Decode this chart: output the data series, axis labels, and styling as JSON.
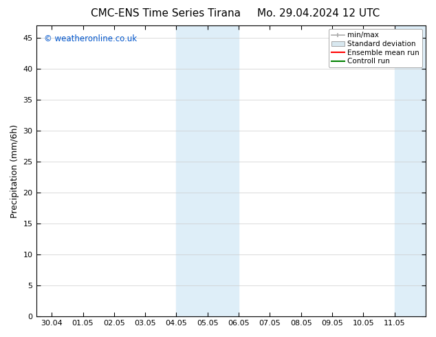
{
  "title_left": "CMC-ENS Time Series Tirana",
  "title_right": "Mo. 29.04.2024 12 UTC",
  "ylabel": "Precipitation (mm/6h)",
  "watermark": "© weatheronline.co.uk",
  "watermark_color": "#0055cc",
  "background_color": "#ffffff",
  "plot_bg_color": "#ffffff",
  "shaded_regions": [
    {
      "xstart": 4.0,
      "xend": 6.0,
      "color": "#deeef8"
    },
    {
      "xstart": 11.0,
      "xend": 12.5,
      "color": "#deeef8"
    }
  ],
  "x_tick_labels": [
    "30.04",
    "01.05",
    "02.05",
    "03.05",
    "04.05",
    "05.05",
    "06.05",
    "07.05",
    "08.05",
    "09.05",
    "10.05",
    "11.05"
  ],
  "x_tick_positions": [
    0,
    1,
    2,
    3,
    4,
    5,
    6,
    7,
    8,
    9,
    10,
    11
  ],
  "xlim": [
    -0.5,
    12.0
  ],
  "ylim": [
    0,
    47
  ],
  "yticks": [
    0,
    5,
    10,
    15,
    20,
    25,
    30,
    35,
    40,
    45
  ],
  "grid_color": "#cccccc",
  "axis_color": "#000000",
  "title_fontsize": 11,
  "tick_fontsize": 8,
  "ylabel_fontsize": 9,
  "legend_fontsize": 7.5
}
